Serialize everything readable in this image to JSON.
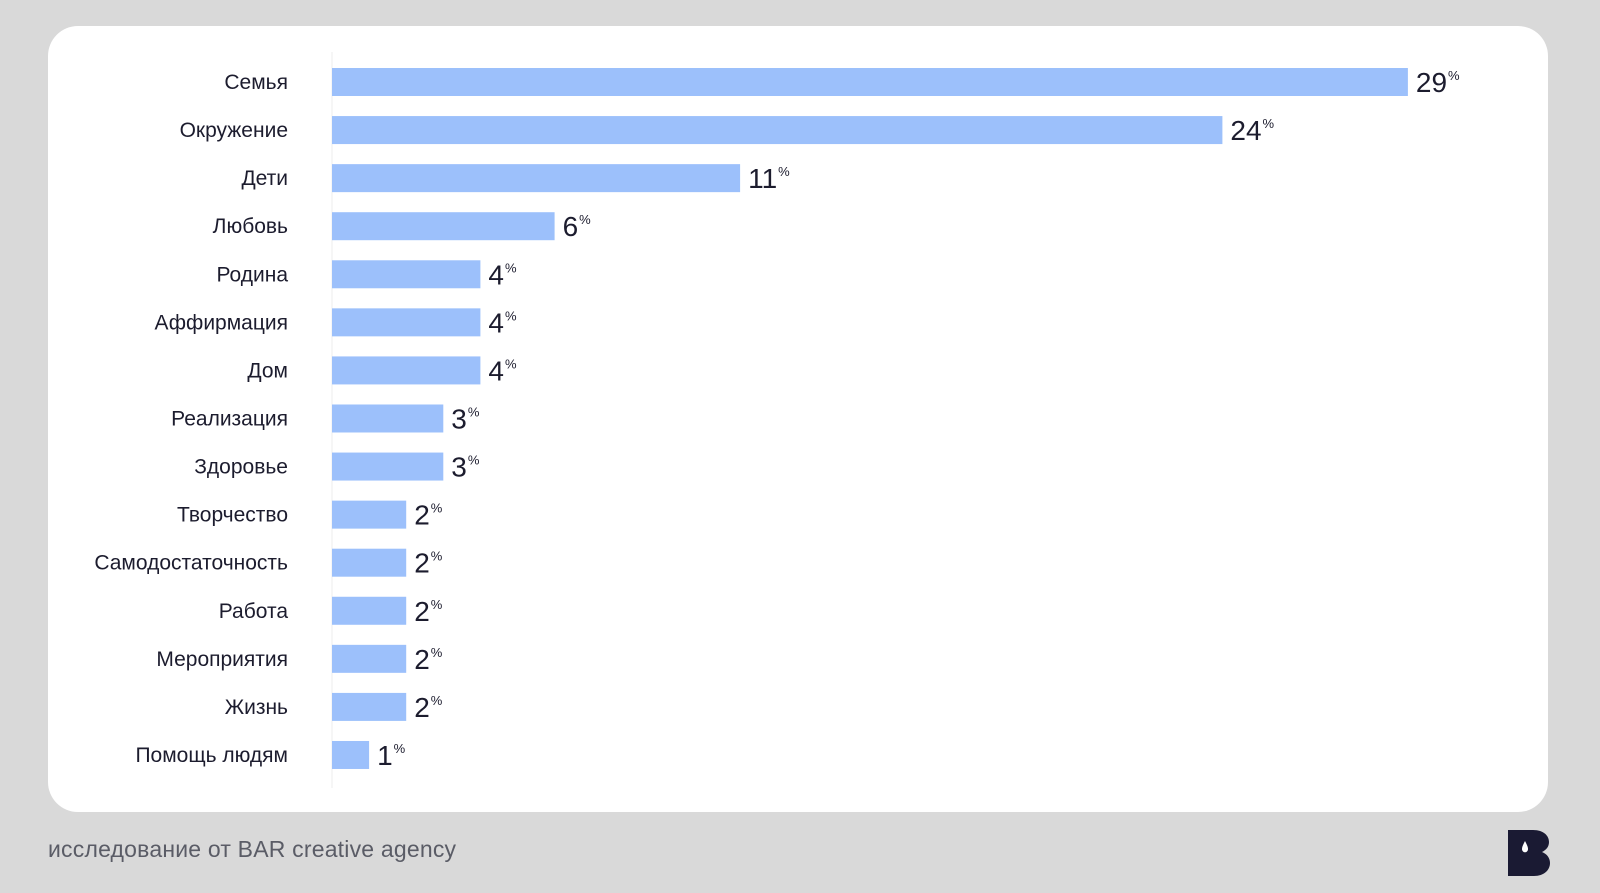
{
  "chart_data": {
    "type": "bar",
    "orientation": "horizontal",
    "categories": [
      "Семья",
      "Окружение",
      "Дети",
      "Любовь",
      "Родина",
      "Аффирмация",
      "Дом",
      "Реализация",
      "Здоровье",
      "Творчество",
      "Самодостаточность",
      "Работа",
      "Мероприятия",
      "Жизнь",
      "Помощь людям"
    ],
    "values": [
      29,
      24,
      11,
      6,
      4,
      4,
      4,
      3,
      3,
      2,
      2,
      2,
      2,
      2,
      1
    ],
    "unit": "%",
    "bar_color": "#9cc0fb",
    "label_color": "#1c1c2e",
    "legend": "none",
    "grid": false
  },
  "footer": {
    "source": "исследование от BAR creative agency"
  },
  "colors": {
    "background": "#d9d9d9",
    "card": "#ffffff",
    "logo": "#1a1a33"
  },
  "logo": {
    "icon": "bar-agency-logo"
  }
}
